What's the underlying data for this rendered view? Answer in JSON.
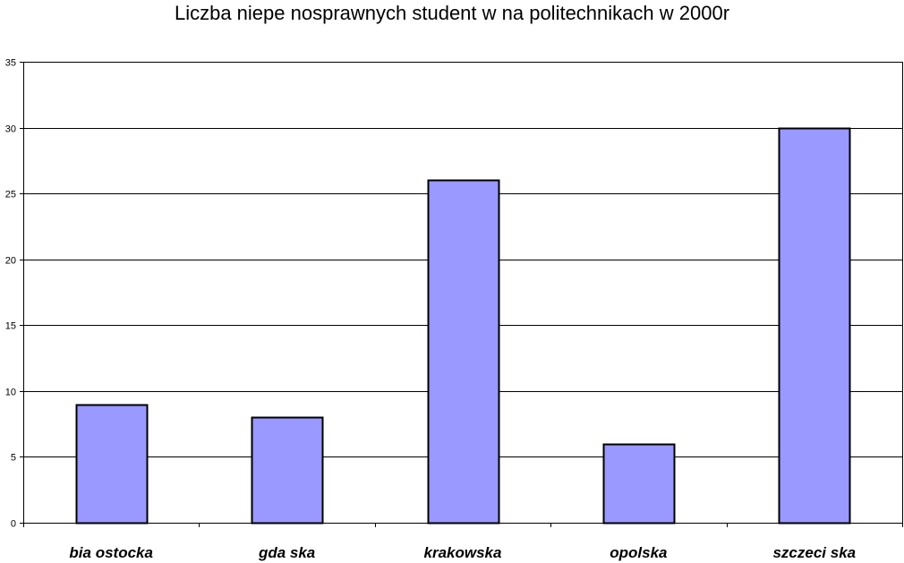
{
  "chart_data": {
    "type": "bar",
    "title": "Liczba niepe nosprawnych student  w na politechnikach w 2000r",
    "categories": [
      "bia ostocka",
      "gda  ska",
      "krakowska",
      "opolska",
      "szczeci  ska"
    ],
    "values": [
      9,
      8,
      26,
      6,
      30
    ],
    "xlabel": "",
    "ylabel": "",
    "ylim": [
      0,
      35
    ],
    "yticks": [
      0,
      5,
      10,
      15,
      20,
      25,
      30,
      35
    ],
    "grid": true,
    "legend": "none",
    "bar_color": "#9999ff"
  }
}
